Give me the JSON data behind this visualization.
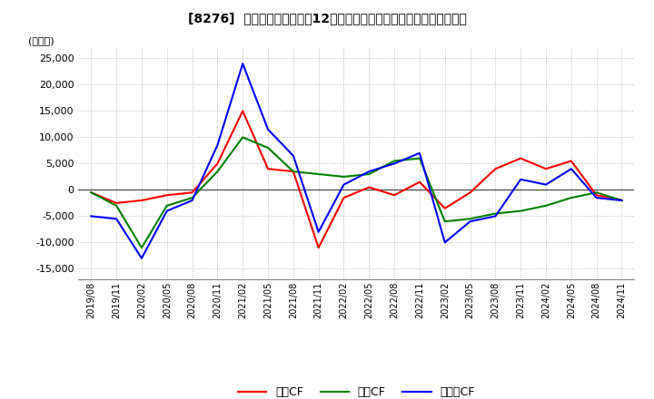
{
  "title": "[8276]  キャッシュフローの12か月移動合計の対前年同期増減額の推移",
  "ylabel": "(百万円)",
  "ylim": [
    -17000,
    27000
  ],
  "yticks": [
    -15000,
    -10000,
    -5000,
    0,
    5000,
    10000,
    15000,
    20000,
    25000
  ],
  "bg_color": "#ffffff",
  "grid_color": "#aaaaaa",
  "series": {
    "営業CF": {
      "color": "#ff0000",
      "values": [
        -500,
        -2500,
        -2000,
        -1000,
        -500,
        5000,
        15000,
        4000,
        3500,
        -11000,
        -1500,
        500,
        -1000,
        1500,
        -3500,
        -500,
        4000,
        6000,
        4000,
        5500,
        -1000,
        -2000
      ]
    },
    "投資CF": {
      "color": "#008000",
      "values": [
        -500,
        -3000,
        -11000,
        -3000,
        -1500,
        3500,
        10000,
        8000,
        3500,
        3000,
        2500,
        3000,
        5500,
        6000,
        -6000,
        -5500,
        -4500,
        -4000,
        -3000,
        -1500,
        -500,
        -2000
      ]
    },
    "フリーCF": {
      "color": "#0000ff",
      "values": [
        -5000,
        -5500,
        -13000,
        -4000,
        -2000,
        8500,
        24000,
        11500,
        6500,
        -8000,
        1000,
        3500,
        5000,
        7000,
        -10000,
        -6000,
        -5000,
        2000,
        1000,
        4000,
        -1500,
        -2000
      ]
    }
  },
  "xtick_labels": [
    "2019/08",
    "2019/11",
    "2020/02",
    "2020/05",
    "2020/08",
    "2020/11",
    "2021/02",
    "2021/05",
    "2021/08",
    "2021/11",
    "2022/02",
    "2022/05",
    "2022/08",
    "2022/11",
    "2023/02",
    "2023/05",
    "2023/08",
    "2023/11",
    "2024/02",
    "2024/05",
    "2024/08",
    "2024/11"
  ]
}
